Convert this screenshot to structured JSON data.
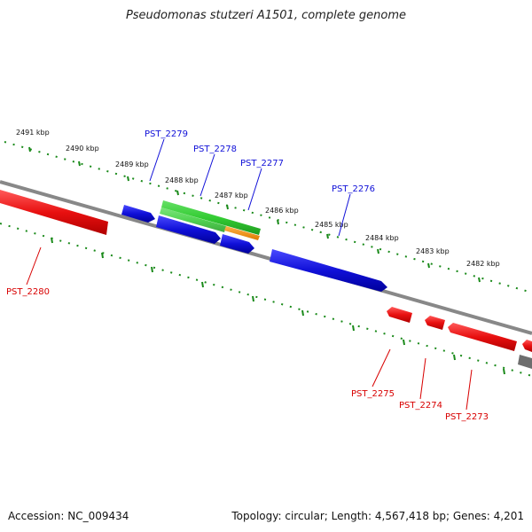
{
  "title": "Pseudomonas stutzeri A1501, complete genome",
  "accession_label": "Accession: NC_009434",
  "summary_label": "Topology: circular; Length: 4,567,418 bp; Genes: 4,201",
  "kbp_labels": [
    "2491 kbp",
    "2490 kbp",
    "2489 kbp",
    "2488 kbp",
    "2487 kbp",
    "2486 kbp",
    "2485 kbp",
    "2484 kbp",
    "2483 kbp",
    "2482 kbp"
  ],
  "genes": [
    {
      "name": "PST_2280",
      "strand": "-",
      "color": "#e81010"
    },
    {
      "name": "PST_2279",
      "strand": "+",
      "color": "#1010d8"
    },
    {
      "name": "PST_2278",
      "strand": "+",
      "color": "#1010d8"
    },
    {
      "name": "PST_2277",
      "strand": "+",
      "color": "#1010d8"
    },
    {
      "name": "PST_2276",
      "strand": "+",
      "color": "#1010d8"
    },
    {
      "name": "PST_2275",
      "strand": "-",
      "color": "#e81010"
    },
    {
      "name": "PST_2274",
      "strand": "-",
      "color": "#e81010"
    },
    {
      "name": "PST_2273",
      "strand": "-",
      "color": "#e81010"
    }
  ],
  "colors": {
    "forward": "#1010d8",
    "reverse": "#e81010",
    "rna": "#33cc33",
    "orange": "#f08a00",
    "axis": "#8a8a8a",
    "ticks": "#1a8a1a"
  }
}
